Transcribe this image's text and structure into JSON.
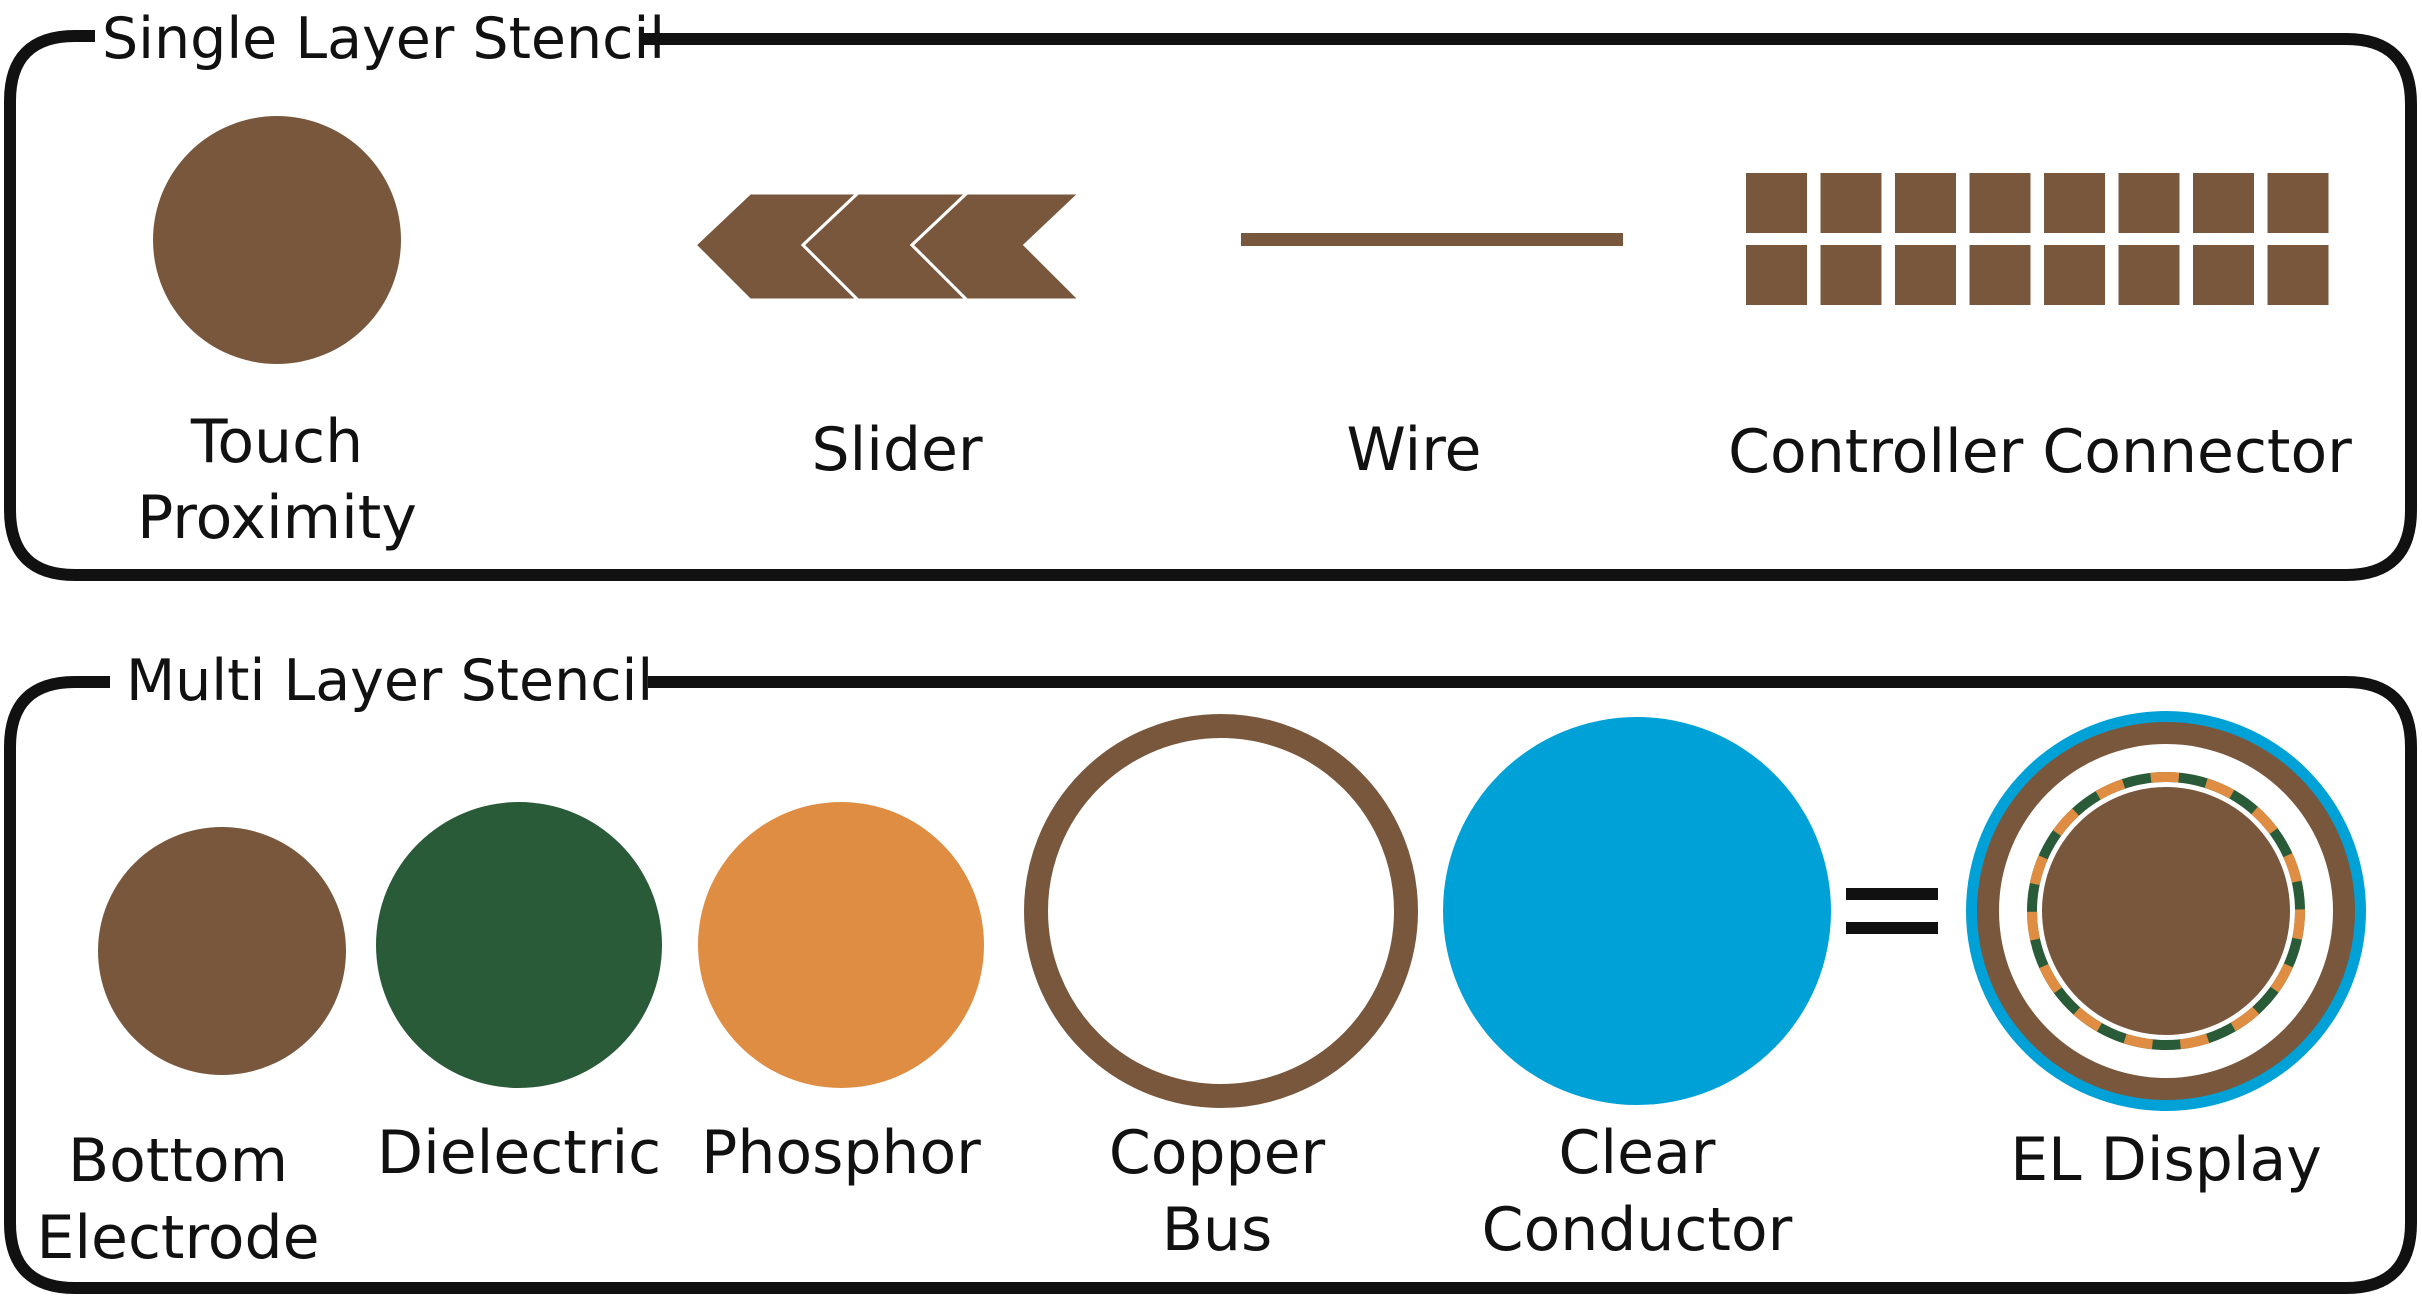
{
  "colors": {
    "brown": "#79573d",
    "green": "#2a5b38",
    "orange": "#de8d43",
    "blue": "#00a1d6",
    "white": "#ffffff",
    "outline": "#111111"
  },
  "single_layer": {
    "title": "Single Layer Stencil",
    "items": [
      {
        "label_lines": [
          "Touch",
          "Proximity"
        ],
        "shape": "filled-circle"
      },
      {
        "label_lines": [
          "Slider"
        ],
        "shape": "chevron-slider"
      },
      {
        "label_lines": [
          "Wire"
        ],
        "shape": "line"
      },
      {
        "label_lines": [
          "Controller Connector"
        ],
        "shape": "pad-grid"
      }
    ]
  },
  "multi_layer": {
    "title": "Multi Layer Stencil",
    "items": [
      {
        "label_lines": [
          "Bottom",
          "Electrode"
        ],
        "shape": "filled-circle",
        "color": "brown"
      },
      {
        "label_lines": [
          "Dielectric"
        ],
        "shape": "filled-circle",
        "color": "green"
      },
      {
        "label_lines": [
          "Phosphor"
        ],
        "shape": "filled-circle",
        "color": "orange"
      },
      {
        "label_lines": [
          "Copper",
          "Bus"
        ],
        "shape": "ring",
        "color": "brown"
      },
      {
        "label_lines": [
          "Clear",
          "Conductor"
        ],
        "shape": "filled-circle",
        "color": "blue"
      },
      {
        "label_lines": [
          "EL Display"
        ],
        "shape": "layered-stack"
      }
    ],
    "equals_symbol": "="
  }
}
